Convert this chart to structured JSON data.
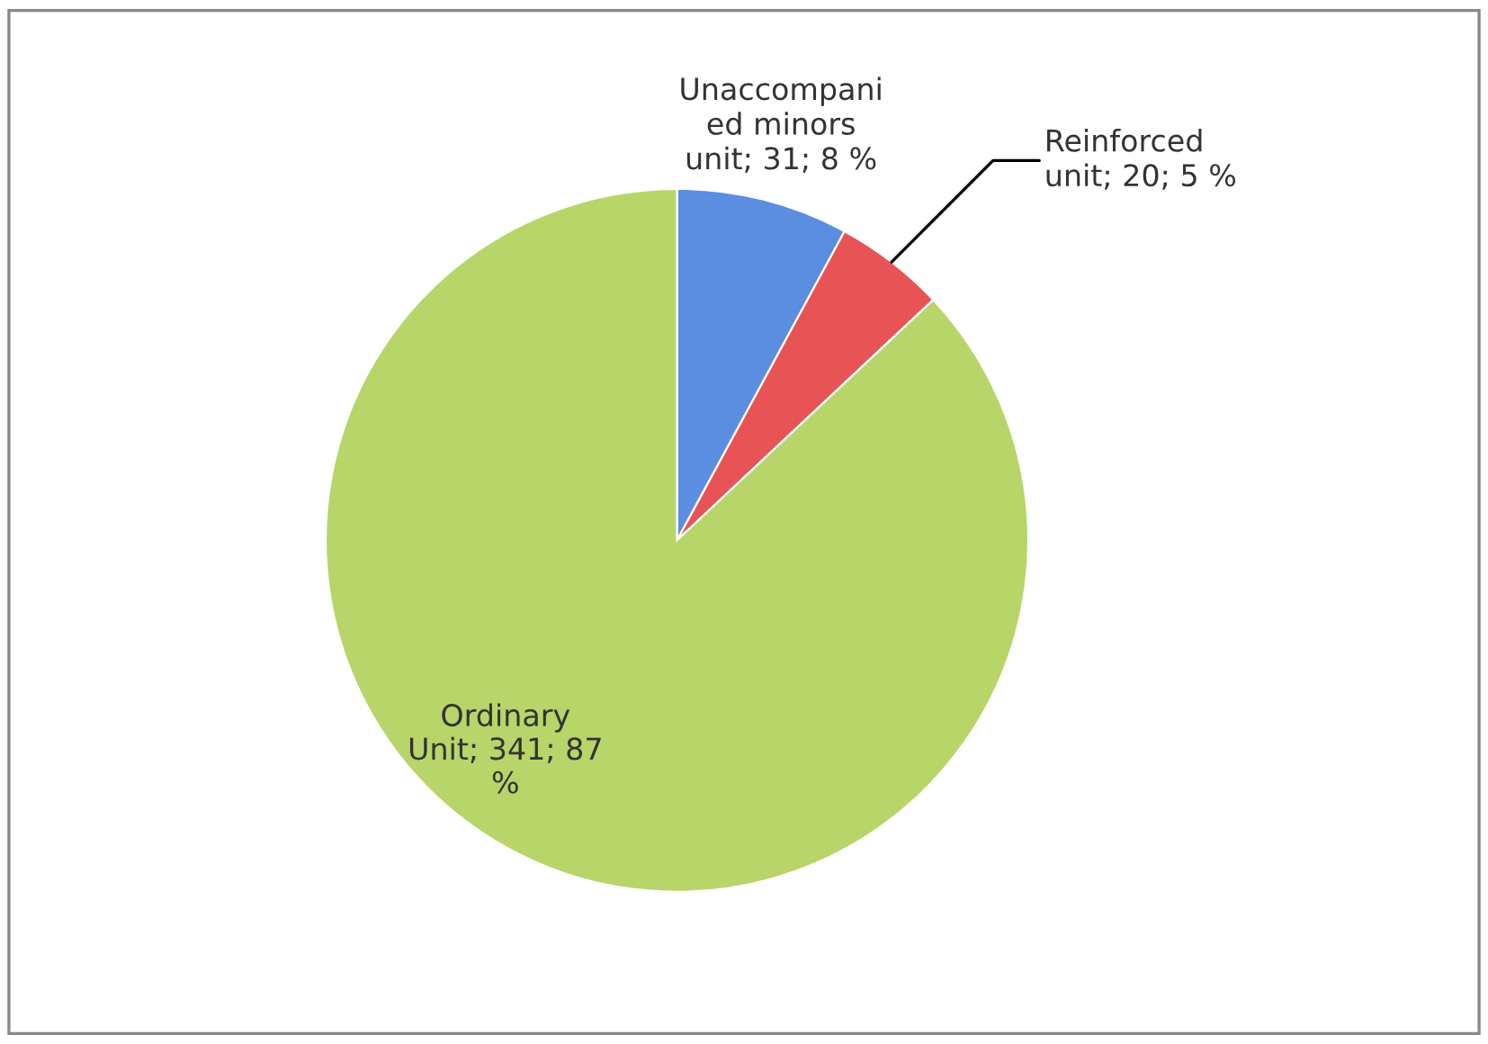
{
  "chart_data": {
    "type": "pie",
    "categories": [
      "Unaccompani\ned minors\nunit; 31; 8 %",
      "Reinforced\nunit; 20; 5 %",
      "Ordinary\nUnit; 341; 87\n%"
    ],
    "values": [
      31,
      20,
      341
    ],
    "colors": [
      "#5b8ee0",
      "#e85456",
      "#b8d56a"
    ],
    "legend": false
  }
}
